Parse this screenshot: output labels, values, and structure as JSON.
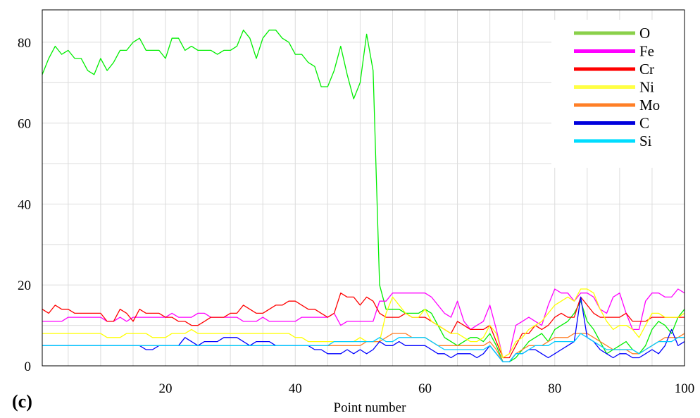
{
  "panel_label": "(c)",
  "chart_data": {
    "type": "line",
    "xlabel": "Point number",
    "ylabel": "",
    "xlim": [
      1,
      100
    ],
    "ylim": [
      0,
      88
    ],
    "x_ticks": [
      20,
      40,
      60,
      80,
      100
    ],
    "y_ticks": [
      0,
      20,
      40,
      60,
      80
    ],
    "grid": true,
    "legend_position": "top-right",
    "series": [
      {
        "name": "O",
        "color": "#00ee00",
        "legend_color": "#8ad04a",
        "values": [
          72,
          76,
          79,
          77,
          78,
          76,
          76,
          73,
          72,
          76,
          73,
          75,
          78,
          78,
          80,
          81,
          78,
          78,
          78,
          76,
          81,
          81,
          78,
          79,
          78,
          78,
          78,
          77,
          78,
          78,
          79,
          83,
          81,
          76,
          81,
          83,
          83,
          81,
          80,
          77,
          77,
          75,
          74,
          69,
          69,
          73,
          79,
          72,
          66,
          70,
          82,
          73,
          20,
          14,
          14,
          14,
          13,
          13,
          13,
          14,
          13,
          10,
          7,
          6,
          5,
          6,
          7,
          7,
          6,
          8,
          5,
          1,
          1,
          2,
          4,
          6,
          7,
          8,
          6,
          9,
          10,
          11,
          13,
          16,
          11,
          9,
          6,
          3,
          4,
          5,
          6,
          4,
          3,
          5,
          9,
          11,
          10,
          8,
          12,
          14
        ]
      },
      {
        "name": "Fe",
        "color": "#ff00ff",
        "legend_color": "#ff00ff",
        "values": [
          11,
          11,
          11,
          11,
          12,
          12,
          12,
          12,
          12,
          12,
          11,
          11,
          12,
          11,
          12,
          12,
          12,
          12,
          12,
          12,
          13,
          12,
          12,
          12,
          13,
          13,
          12,
          12,
          12,
          12,
          12,
          11,
          11,
          11,
          12,
          11,
          11,
          11,
          11,
          11,
          12,
          12,
          12,
          12,
          12,
          13,
          10,
          11,
          11,
          11,
          11,
          11,
          16,
          16,
          18,
          18,
          18,
          18,
          18,
          18,
          17,
          15,
          13,
          12,
          16,
          11,
          9,
          10,
          11,
          15,
          9,
          2,
          3,
          10,
          11,
          12,
          11,
          10,
          15,
          19,
          18,
          18,
          16,
          18,
          18,
          17,
          14,
          13,
          17,
          18,
          13,
          9,
          9,
          16,
          18,
          18,
          17,
          17,
          19,
          18
        ]
      },
      {
        "name": "Cr",
        "color": "#ff0000",
        "legend_color": "#ff0000",
        "values": [
          14,
          13,
          15,
          14,
          14,
          13,
          13,
          13,
          13,
          13,
          11,
          11,
          14,
          13,
          11,
          14,
          13,
          13,
          13,
          12,
          12,
          11,
          11,
          10,
          10,
          11,
          12,
          12,
          12,
          13,
          13,
          15,
          14,
          13,
          13,
          14,
          15,
          15,
          16,
          16,
          15,
          14,
          14,
          13,
          12,
          13,
          18,
          17,
          17,
          15,
          17,
          16,
          13,
          12,
          12,
          12,
          13,
          12,
          12,
          12,
          11,
          10,
          9,
          8,
          11,
          10,
          9,
          9,
          9,
          10,
          6,
          2,
          2,
          5,
          8,
          8,
          10,
          9,
          10,
          12,
          13,
          12,
          12,
          17,
          15,
          13,
          12,
          12,
          12,
          12,
          13,
          11,
          11,
          11,
          12,
          12,
          12,
          12,
          12,
          12
        ]
      },
      {
        "name": "Ni",
        "color": "#ffff00",
        "legend_color": "#ffff44",
        "values": [
          8,
          8,
          8,
          8,
          8,
          8,
          8,
          8,
          8,
          8,
          7,
          7,
          7,
          8,
          8,
          8,
          8,
          7,
          7,
          7,
          8,
          8,
          8,
          9,
          8,
          8,
          8,
          8,
          8,
          8,
          8,
          8,
          8,
          8,
          8,
          8,
          8,
          8,
          8,
          7,
          7,
          6,
          6,
          6,
          6,
          6,
          6,
          6,
          6,
          7,
          6,
          6,
          6,
          13,
          17,
          15,
          13,
          12,
          12,
          14,
          11,
          10,
          9,
          8,
          8,
          7,
          6,
          6,
          7,
          10,
          8,
          2,
          3,
          6,
          7,
          9,
          10,
          11,
          13,
          15,
          16,
          17,
          16,
          19,
          19,
          18,
          14,
          11,
          9,
          10,
          10,
          9,
          7,
          10,
          13,
          13,
          12,
          12,
          12,
          13
        ]
      },
      {
        "name": "Mo",
        "color": "#ff7f27",
        "legend_color": "#ff7f27",
        "values": [
          5,
          5,
          5,
          5,
          5,
          5,
          5,
          5,
          5,
          5,
          5,
          5,
          5,
          5,
          5,
          5,
          5,
          5,
          5,
          5,
          5,
          5,
          5,
          5,
          5,
          5,
          5,
          5,
          5,
          5,
          5,
          5,
          5,
          5,
          5,
          5,
          5,
          5,
          5,
          5,
          5,
          5,
          5,
          5,
          5,
          5,
          5,
          5,
          5,
          5,
          6,
          6,
          6,
          7,
          8,
          8,
          8,
          7,
          7,
          7,
          6,
          5,
          5,
          5,
          5,
          5,
          5,
          5,
          5,
          6,
          4,
          1,
          1,
          3,
          4,
          5,
          5,
          5,
          6,
          7,
          7,
          7,
          8,
          8,
          8,
          7,
          6,
          5,
          4,
          4,
          4,
          3,
          3,
          4,
          5,
          6,
          7,
          7,
          7,
          8
        ]
      },
      {
        "name": "C",
        "color": "#0000ff",
        "legend_color": "#0000dd",
        "values": [
          5,
          5,
          5,
          5,
          5,
          5,
          5,
          5,
          5,
          5,
          5,
          5,
          5,
          5,
          5,
          5,
          4,
          4,
          5,
          5,
          5,
          5,
          7,
          6,
          5,
          6,
          6,
          6,
          7,
          7,
          7,
          6,
          5,
          6,
          6,
          6,
          5,
          5,
          5,
          5,
          5,
          5,
          4,
          4,
          3,
          3,
          3,
          4,
          3,
          4,
          3,
          4,
          6,
          5,
          5,
          6,
          5,
          5,
          5,
          5,
          4,
          3,
          3,
          2,
          3,
          3,
          3,
          2,
          3,
          5,
          3,
          1,
          1,
          3,
          3,
          4,
          4,
          3,
          2,
          3,
          4,
          5,
          6,
          17,
          7,
          6,
          4,
          3,
          2,
          3,
          3,
          2,
          2,
          3,
          4,
          3,
          5,
          9,
          5,
          6
        ]
      },
      {
        "name": "Si",
        "color": "#00ccff",
        "legend_color": "#00ddff",
        "values": [
          5,
          5,
          5,
          5,
          5,
          5,
          5,
          5,
          5,
          5,
          5,
          5,
          5,
          5,
          5,
          5,
          5,
          5,
          5,
          5,
          5,
          5,
          5,
          5,
          5,
          5,
          5,
          5,
          5,
          5,
          5,
          5,
          5,
          5,
          5,
          5,
          5,
          5,
          5,
          5,
          5,
          5,
          5,
          5,
          5,
          6,
          6,
          6,
          6,
          6,
          6,
          6,
          7,
          6,
          6,
          7,
          7,
          7,
          7,
          7,
          6,
          5,
          4,
          4,
          4,
          4,
          4,
          4,
          4,
          5,
          3,
          1,
          1,
          3,
          3,
          4,
          5,
          5,
          5,
          6,
          6,
          6,
          6,
          8,
          7,
          6,
          5,
          4,
          4,
          4,
          4,
          4,
          3,
          4,
          5,
          6,
          6,
          6,
          7,
          7
        ]
      }
    ]
  }
}
